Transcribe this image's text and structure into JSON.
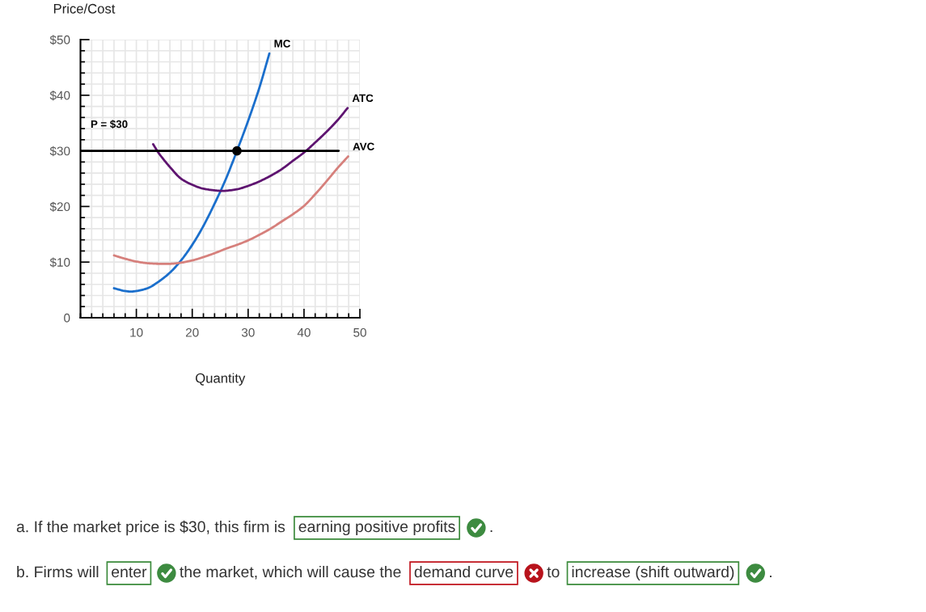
{
  "chart_data": {
    "type": "line",
    "ylabel": "Price/Cost",
    "xlabel": "Quantity",
    "xlim": [
      0,
      50
    ],
    "ylim": [
      0,
      50
    ],
    "xticks": [
      {
        "value": 0,
        "label": null
      },
      {
        "value": 2,
        "label": null
      },
      {
        "value": 4,
        "label": null
      },
      {
        "value": 6,
        "label": null
      },
      {
        "value": 8,
        "label": null
      },
      10,
      {
        "value": 12,
        "label": null
      },
      {
        "value": 14,
        "label": null
      },
      {
        "value": 16,
        "label": null
      },
      {
        "value": 18,
        "label": null
      },
      20,
      {
        "value": 22,
        "label": null
      },
      {
        "value": 24,
        "label": null
      },
      {
        "value": 26,
        "label": null
      },
      {
        "value": 28,
        "label": null
      },
      30,
      {
        "value": 32,
        "label": null
      },
      {
        "value": 34,
        "label": null
      },
      {
        "value": 36,
        "label": null
      },
      {
        "value": 38,
        "label": null
      },
      40,
      {
        "value": 42,
        "label": null
      },
      {
        "value": 44,
        "label": null
      },
      {
        "value": 46,
        "label": null
      },
      {
        "value": 48,
        "label": null
      },
      50
    ],
    "yticks": [
      {
        "value": 0,
        "label": "0"
      },
      {
        "value": 2,
        "label": null
      },
      {
        "value": 4,
        "label": null
      },
      {
        "value": 6,
        "label": null
      },
      {
        "value": 8,
        "label": null
      },
      {
        "value": 10,
        "label": "$10"
      },
      {
        "value": 12,
        "label": null
      },
      {
        "value": 14,
        "label": null
      },
      {
        "value": 16,
        "label": null
      },
      {
        "value": 18,
        "label": null
      },
      {
        "value": 20,
        "label": "$20"
      },
      {
        "value": 22,
        "label": null
      },
      {
        "value": 24,
        "label": null
      },
      {
        "value": 26,
        "label": null
      },
      {
        "value": 28,
        "label": null
      },
      {
        "value": 30,
        "label": "$30"
      },
      {
        "value": 32,
        "label": null
      },
      {
        "value": 34,
        "label": null
      },
      {
        "value": 36,
        "label": null
      },
      {
        "value": 38,
        "label": null
      },
      {
        "value": 40,
        "label": "$40"
      },
      {
        "value": 42,
        "label": null
      },
      {
        "value": 44,
        "label": null
      },
      {
        "value": 46,
        "label": null
      },
      {
        "value": 48,
        "label": null
      },
      {
        "value": 50,
        "label": "$50"
      }
    ],
    "grid": true,
    "series": [
      {
        "name": "MC",
        "color": "#1b6fcc",
        "x": [
          6,
          8,
          9,
          10,
          12,
          14,
          16,
          18,
          20,
          22,
          24,
          26,
          28,
          30,
          32,
          33.8
        ],
        "values": [
          5.3,
          4.8,
          4.7,
          4.8,
          5.3,
          6.5,
          8.1,
          10.3,
          13.1,
          16.5,
          20.5,
          24.9,
          30,
          35.4,
          41.3,
          47.5
        ]
      },
      {
        "name": "ATC",
        "color": "#5e1470",
        "x": [
          13,
          14,
          15,
          16,
          18,
          20,
          22,
          24,
          25.4,
          28,
          30,
          32,
          34,
          36,
          38,
          40,
          42,
          44,
          46,
          47.8
        ],
        "values": [
          31.2,
          29.6,
          28.3,
          27.1,
          25.0,
          23.9,
          23.2,
          22.9,
          22.8,
          23.1,
          23.7,
          24.5,
          25.5,
          26.7,
          28.2,
          29.7,
          31.5,
          33.4,
          35.5,
          37.7
        ]
      },
      {
        "name": "AVC",
        "color": "#d6807c",
        "x": [
          6,
          8,
          10,
          12,
          14,
          16,
          18,
          20,
          22,
          24,
          26,
          28,
          30,
          32,
          34,
          36,
          38,
          40,
          42,
          44,
          46,
          47.9
        ],
        "values": [
          11.2,
          10.6,
          10.1,
          9.8,
          9.7,
          9.7,
          9.9,
          10.3,
          10.9,
          11.6,
          12.4,
          13.1,
          13.9,
          14.9,
          16.0,
          17.3,
          18.6,
          20.1,
          22.2,
          24.5,
          26.9,
          29.0
        ]
      },
      {
        "name": "P = $30",
        "color": "#000000",
        "x": [
          0,
          46.2
        ],
        "values": [
          30,
          30
        ]
      },
      {
        "type": "scatter",
        "marker": "circle",
        "color": "#000000",
        "x": [
          28
        ],
        "values": [
          30
        ]
      }
    ],
    "annotations": [
      "a. If the market price is $30, this firm is",
      "earning positive profits",
      ".",
      "b. Firms will",
      "enter",
      "the market, which will cause the",
      "demand curve",
      "to",
      "increase (shift outward)",
      "."
    ]
  }
}
